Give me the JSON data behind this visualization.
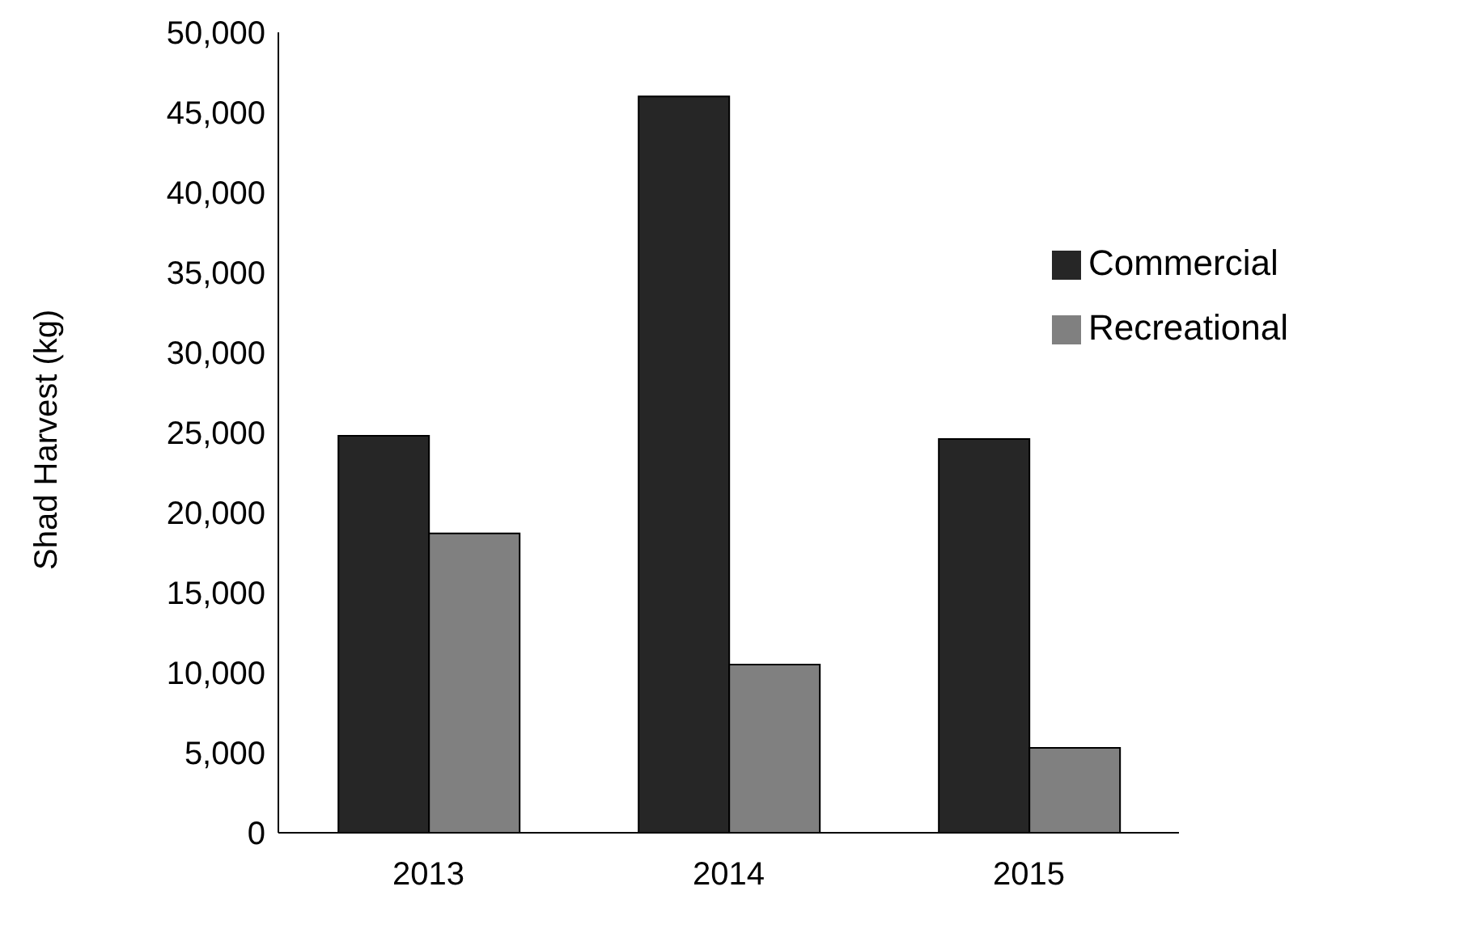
{
  "chart_data": {
    "type": "bar",
    "ylabel": "Shad Harvest (kg)",
    "categories": [
      "2013",
      "2014",
      "2015"
    ],
    "series": [
      {
        "name": "Commercial",
        "color": "#262626",
        "values": [
          24800,
          46000,
          24600
        ]
      },
      {
        "name": "Recreational",
        "color": "#808080",
        "values": [
          18700,
          10500,
          5300
        ]
      }
    ],
    "ylim": [
      0,
      50000
    ],
    "yticks": [
      0,
      {
        "value": 5000,
        "label": "5,000"
      },
      {
        "value": 10000,
        "label": "10,000"
      },
      {
        "value": 15000,
        "label": "15,000"
      },
      {
        "value": 20000,
        "label": "20,000"
      },
      {
        "value": 25000,
        "label": "25,000"
      },
      {
        "value": 30000,
        "label": "30,000"
      },
      {
        "value": 35000,
        "label": "35,000"
      },
      {
        "value": 40000,
        "label": "40,000"
      },
      {
        "value": 45000,
        "label": "45,000"
      },
      {
        "value": 50000,
        "label": "50,000"
      }
    ],
    "grid": false,
    "legend": "top right"
  }
}
